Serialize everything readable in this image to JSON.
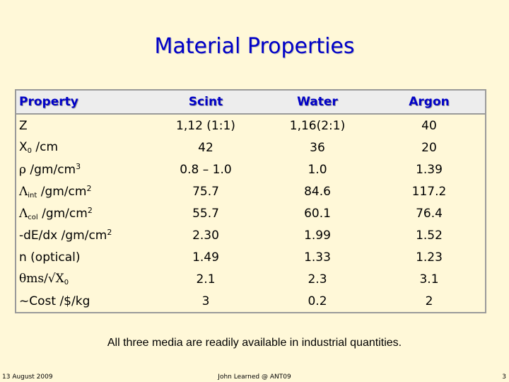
{
  "title": "Material Properties",
  "table": {
    "headers": [
      "Property",
      "Scint",
      "Water",
      "Argon"
    ],
    "rows": [
      {
        "label_main": "Z",
        "label_sub": "",
        "label_unit": "",
        "label_sup": "",
        "values": [
          "1,12 (1:1)",
          "1,16(2:1)",
          "40"
        ]
      },
      {
        "label_main": "X",
        "label_sub": "0",
        "label_unit": " /cm",
        "label_sup": "",
        "values": [
          "42",
          "36",
          "20"
        ]
      },
      {
        "label_main": "ρ",
        "label_sub": "",
        "label_unit": " /gm/cm",
        "label_sup": "3",
        "values": [
          "0.8 – 1.0",
          "1.0",
          "1.39"
        ]
      },
      {
        "label_main": "Λ",
        "label_sub": "int",
        "label_unit": " /gm/cm",
        "label_sup": "2",
        "values": [
          "75.7",
          "84.6",
          "117.2"
        ]
      },
      {
        "label_main": "Λ",
        "label_sub": "col",
        "label_unit": " /gm/cm",
        "label_sup": "2",
        "values": [
          "55.7",
          "60.1",
          "76.4"
        ]
      },
      {
        "label_main": "-dE/dx",
        "label_sub": "",
        "label_unit": " /gm/cm",
        "label_sup": "2",
        "values": [
          "2.30",
          "1.99",
          "1.52"
        ]
      },
      {
        "label_main": "n (optical)",
        "label_sub": "",
        "label_unit": "",
        "label_sup": "",
        "values": [
          "1.49",
          "1.33",
          "1.23"
        ]
      },
      {
        "label_main": "θms/√X",
        "label_sub": "0",
        "label_unit": "",
        "label_sup": "",
        "values": [
          "2.1",
          "2.3",
          "3.1"
        ]
      },
      {
        "label_main": "~Cost",
        "label_sub": "",
        "label_unit": " /$/kg",
        "label_sup": "",
        "values": [
          "3",
          "0.2",
          "2"
        ]
      }
    ]
  },
  "note": "All three media are readily available in industrial quantities.",
  "footer": {
    "date": "13 August 2009",
    "author": "John Learned @ ANT09",
    "page": "3"
  },
  "colors": {
    "background": "#fff8d8",
    "title": "#0000c8",
    "header_bg": "#ededed",
    "border": "#9a9a9a"
  }
}
